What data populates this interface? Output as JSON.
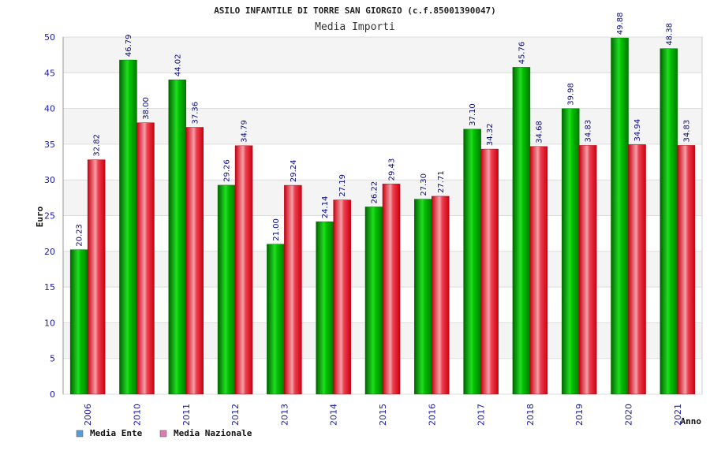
{
  "chart_data": {
    "type": "bar",
    "title": "ASILO INFANTILE DI TORRE SAN GIORGIO (c.f.85001390047)",
    "subtitle": "Media Importi",
    "xlabel": "Anno",
    "ylabel": "Euro",
    "ylim": [
      0,
      50
    ],
    "yticks": [
      0,
      5,
      10,
      15,
      20,
      25,
      30,
      35,
      40,
      45,
      50
    ],
    "grid": true,
    "legend_position": "bottom-left",
    "categories": [
      "2006",
      "2010",
      "2011",
      "2012",
      "2013",
      "2014",
      "2015",
      "2016",
      "2017",
      "2018",
      "2019",
      "2020",
      "2021"
    ],
    "series": [
      {
        "name": "Media Ente",
        "color": "#00b800",
        "legend_color": "#5b9bd5",
        "values": [
          20.23,
          46.79,
          44.02,
          29.26,
          21.0,
          24.14,
          26.22,
          27.3,
          37.1,
          45.76,
          39.98,
          49.88,
          48.38
        ],
        "labels": [
          "20.23",
          "46.79",
          "44.02",
          "29.26",
          "21.00",
          "24.14",
          "26.22",
          "27.30",
          "37.10",
          "45.76",
          "39.98",
          "49.88",
          "48.38"
        ]
      },
      {
        "name": "Media Nazionale",
        "color": "#ee1111",
        "legend_color": "#e07bb0",
        "values": [
          32.82,
          38.0,
          37.36,
          34.79,
          29.24,
          27.19,
          29.43,
          27.71,
          34.32,
          34.68,
          34.83,
          34.94,
          34.83
        ],
        "labels": [
          "32.82",
          "38.00",
          "37.36",
          "34.79",
          "29.24",
          "27.19",
          "29.43",
          "27.71",
          "34.32",
          "34.68",
          "34.83",
          "34.94",
          "34.83"
        ]
      }
    ]
  }
}
